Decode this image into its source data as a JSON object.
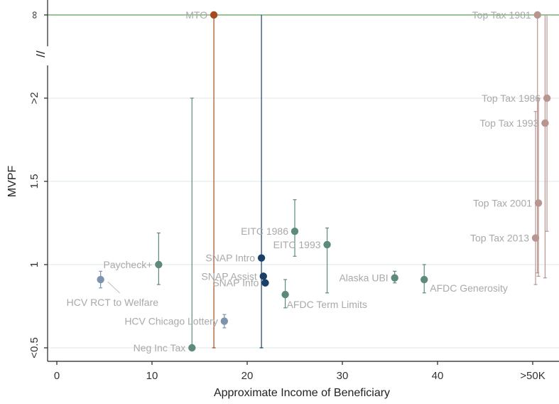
{
  "chart_data": {
    "type": "scatter",
    "title": "",
    "xlabel": "Approximate Income of Beneficiary",
    "ylabel": "MVPF",
    "xlim": [
      -1,
      52
    ],
    "x_ticks": [
      {
        "value": 0,
        "label": "0"
      },
      {
        "value": 10,
        "label": "10"
      },
      {
        "value": 20,
        "label": "20"
      },
      {
        "value": 30,
        "label": "30"
      },
      {
        "value": 40,
        "label": "40"
      },
      {
        "value": 50,
        "label": ">50K"
      }
    ],
    "y_ticks": [
      {
        "value": 0.5,
        "label": "<0.5"
      },
      {
        "value": 1,
        "label": "1"
      },
      {
        "value": 1.5,
        "label": "1.5"
      },
      {
        "value": 2,
        "label": ">2"
      },
      {
        "value": "inf",
        "label": "∞"
      }
    ],
    "y_axis_break": {
      "symbol": "//",
      "between": [
        2,
        "inf"
      ]
    },
    "reference_line": {
      "y": "inf",
      "color": "#5aa05a"
    },
    "grid": "horizontal",
    "colors": {
      "green": "#5e8a7a",
      "navy": "#1b3f66",
      "orange": "#a54a1e",
      "rose": "#b99592",
      "slate": "#7e93ad",
      "label": "#a9a9a9"
    },
    "points": [
      {
        "label": "MTO",
        "x": 16.5,
        "y": "inf",
        "ci": [
          0.5,
          "inf"
        ],
        "color": "orange",
        "label_pos": "left"
      },
      {
        "label": "Top Tax 1981",
        "x": 50.5,
        "y": "inf",
        "ci": [
          0.95,
          "inf"
        ],
        "color": "rose",
        "label_pos": "left"
      },
      {
        "label": "Top Tax 1986",
        "x": 51.5,
        "y": 2.0,
        "ci": [
          1.2,
          "inf"
        ],
        "color": "rose",
        "label_pos": "left"
      },
      {
        "label": "Top Tax 1993",
        "x": 51.3,
        "y": 1.85,
        "ci": [
          0.92,
          "inf"
        ],
        "color": "rose",
        "label_pos": "left"
      },
      {
        "label": "Top Tax 2001",
        "x": 50.6,
        "y": 1.37,
        "ci": [
          0.93,
          2.0
        ],
        "color": "rose",
        "label_pos": "left"
      },
      {
        "label": "Top Tax 2013",
        "x": 50.3,
        "y": 1.16,
        "ci": [
          0.88,
          1.92
        ],
        "color": "rose",
        "label_pos": "left"
      },
      {
        "label": "SNAP Intro",
        "x": 21.5,
        "y": 1.04,
        "ci": [
          0.5,
          "inf"
        ],
        "color": "navy",
        "label_pos": "left"
      },
      {
        "label": "SNAP Assist",
        "x": 21.7,
        "y": 0.93,
        "ci": null,
        "color": "navy",
        "label_pos": "left"
      },
      {
        "label": "SNAP Info",
        "x": 21.9,
        "y": 0.89,
        "ci": null,
        "color": "navy",
        "label_pos": "left"
      },
      {
        "label": "EITC 1986",
        "x": 25.0,
        "y": 1.2,
        "ci": [
          1.05,
          1.39
        ],
        "color": "green",
        "label_pos": "left"
      },
      {
        "label": "EITC 1993",
        "x": 28.4,
        "y": 1.12,
        "ci": [
          0.83,
          1.22
        ],
        "color": "green",
        "label_pos": "left"
      },
      {
        "label": "Paycheck+",
        "x": 10.7,
        "y": 1.0,
        "ci": [
          0.88,
          1.19
        ],
        "color": "green",
        "label_pos": "left"
      },
      {
        "label": "Alaska UBI",
        "x": 35.5,
        "y": 0.92,
        "ci": [
          0.89,
          0.96
        ],
        "color": "green",
        "label_pos": "left"
      },
      {
        "label": "AFDC Generosity",
        "x": 38.6,
        "y": 0.91,
        "ci": [
          0.83,
          1.0
        ],
        "color": "green",
        "label_pos": "right"
      },
      {
        "label": "AFDC Term Limits",
        "x": 24.0,
        "y": 0.82,
        "ci": [
          0.74,
          0.91
        ],
        "color": "green",
        "label_pos": "below-right"
      },
      {
        "label": "Neg Inc Tax",
        "x": 14.2,
        "y": 0.5,
        "ci": [
          0.5,
          2.0
        ],
        "color": "green",
        "label_pos": "left"
      },
      {
        "label": "HCV RCT to Welfare",
        "x": 4.6,
        "y": 0.91,
        "ci": [
          0.86,
          0.96
        ],
        "color": "slate",
        "label_pos": "below-right-leader"
      },
      {
        "label": "HCV Chicago Lottery",
        "x": 17.6,
        "y": 0.66,
        "ci": [
          0.62,
          0.7
        ],
        "color": "slate",
        "label_pos": "left"
      }
    ]
  }
}
